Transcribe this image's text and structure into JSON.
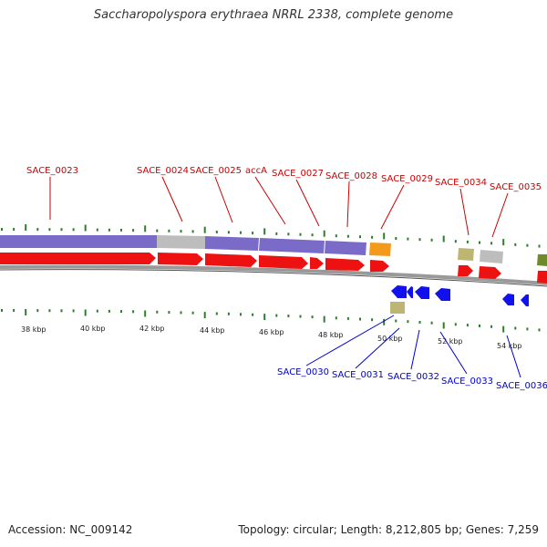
{
  "title": "Saccharopolyspora erythraea NRRL 2338, complete genome",
  "footer": {
    "accession": "Accession: NC_009142",
    "summary": "Topology: circular; Length: 8,212,805 bp; Genes: 7,259"
  },
  "colors": {
    "forward_label": "#cc0000",
    "reverse_label": "#0000cc",
    "forward_cds": "#ee1111",
    "reverse_cds": "#1111ee",
    "purple_feature": "#7a6bc8",
    "gray_feature": "#bdbdbd",
    "orange_feature": "#f39a1a",
    "khaki_feature": "#bdb673",
    "olive_feature": "#6e8a2a",
    "tick_green": "#2e7d2e",
    "backbone": "#999999"
  },
  "scale_ticks": [
    "38 kbp",
    "40 kbp",
    "42 kbp",
    "44 kbp",
    "46 kbp",
    "48 kbp",
    "50 kbp",
    "52 kbp",
    "54 kbp"
  ],
  "forward_genes": [
    {
      "name": "SACE_0023"
    },
    {
      "name": "SACE_0024"
    },
    {
      "name": "SACE_0025"
    },
    {
      "name": "accA"
    },
    {
      "name": "SACE_0027"
    },
    {
      "name": "SACE_0028"
    },
    {
      "name": "SACE_0029"
    },
    {
      "name": "SACE_0034"
    },
    {
      "name": "SACE_0035"
    }
  ],
  "reverse_genes": [
    {
      "name": "SACE_0030"
    },
    {
      "name": "SACE_0031"
    },
    {
      "name": "SACE_0032"
    },
    {
      "name": "SACE_0033"
    },
    {
      "name": "SACE_0036"
    }
  ]
}
